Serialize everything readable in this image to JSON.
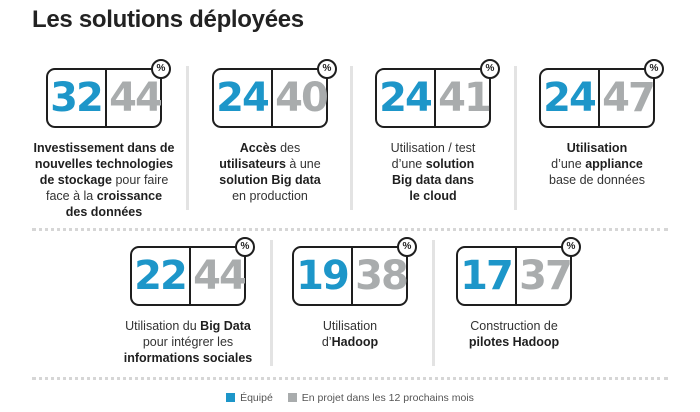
{
  "title": "Les solutions déployées",
  "percent_symbol": "%",
  "chart_data": {
    "type": "table",
    "series": [
      {
        "name": "Équipé",
        "color": "#1d96c9"
      },
      {
        "name": "En projet dans les 12 prochains mois",
        "color": "#a9acad"
      }
    ],
    "items": [
      {
        "equipe": 32,
        "projet": 44,
        "caption": [
          {
            "t": "Investissement dans de",
            "b": true
          },
          {
            "t": "\n"
          },
          {
            "t": "nouvelles technologies",
            "b": true
          },
          {
            "t": "\n"
          },
          {
            "t": "de stockage",
            "b": true
          },
          {
            "t": " pour faire"
          },
          {
            "t": "\n"
          },
          {
            "t": "face à la "
          },
          {
            "t": "croissance",
            "b": true
          },
          {
            "t": "\n"
          },
          {
            "t": "des données",
            "b": true
          }
        ]
      },
      {
        "equipe": 24,
        "projet": 40,
        "caption": [
          {
            "t": "Accès",
            "b": true
          },
          {
            "t": " des"
          },
          {
            "t": "\n"
          },
          {
            "t": "utilisateurs",
            "b": true
          },
          {
            "t": " à une"
          },
          {
            "t": "\n"
          },
          {
            "t": "solution Big data",
            "b": true
          },
          {
            "t": "\n"
          },
          {
            "t": "en production"
          }
        ]
      },
      {
        "equipe": 24,
        "projet": 41,
        "caption": [
          {
            "t": "Utilisation / test"
          },
          {
            "t": "\n"
          },
          {
            "t": "d’une "
          },
          {
            "t": "solution",
            "b": true
          },
          {
            "t": "\n"
          },
          {
            "t": "Big data dans",
            "b": true
          },
          {
            "t": "\n"
          },
          {
            "t": "le cloud",
            "b": true
          }
        ]
      },
      {
        "equipe": 24,
        "projet": 47,
        "caption": [
          {
            "t": "Utilisation",
            "b": true
          },
          {
            "t": "\n"
          },
          {
            "t": "d’une "
          },
          {
            "t": "appliance",
            "b": true
          },
          {
            "t": "\n"
          },
          {
            "t": "base de données"
          }
        ]
      },
      {
        "equipe": 22,
        "projet": 44,
        "caption": [
          {
            "t": "Utilisation du "
          },
          {
            "t": "Big Data",
            "b": true
          },
          {
            "t": "\n"
          },
          {
            "t": "pour intégrer les"
          },
          {
            "t": "\n"
          },
          {
            "t": "informations sociales",
            "b": true
          }
        ]
      },
      {
        "equipe": 19,
        "projet": 38,
        "caption": [
          {
            "t": "Utilisation"
          },
          {
            "t": "\n"
          },
          {
            "t": "d’"
          },
          {
            "t": "Hadoop",
            "b": true
          }
        ]
      },
      {
        "equipe": 17,
        "projet": 37,
        "caption": [
          {
            "t": "Construction de"
          },
          {
            "t": "\n"
          },
          {
            "t": "pilotes Hadoop",
            "b": true
          }
        ]
      }
    ]
  },
  "legend": {
    "equipe_label": "Équipé",
    "projet_label": "En projet dans les 12 prochains mois"
  }
}
